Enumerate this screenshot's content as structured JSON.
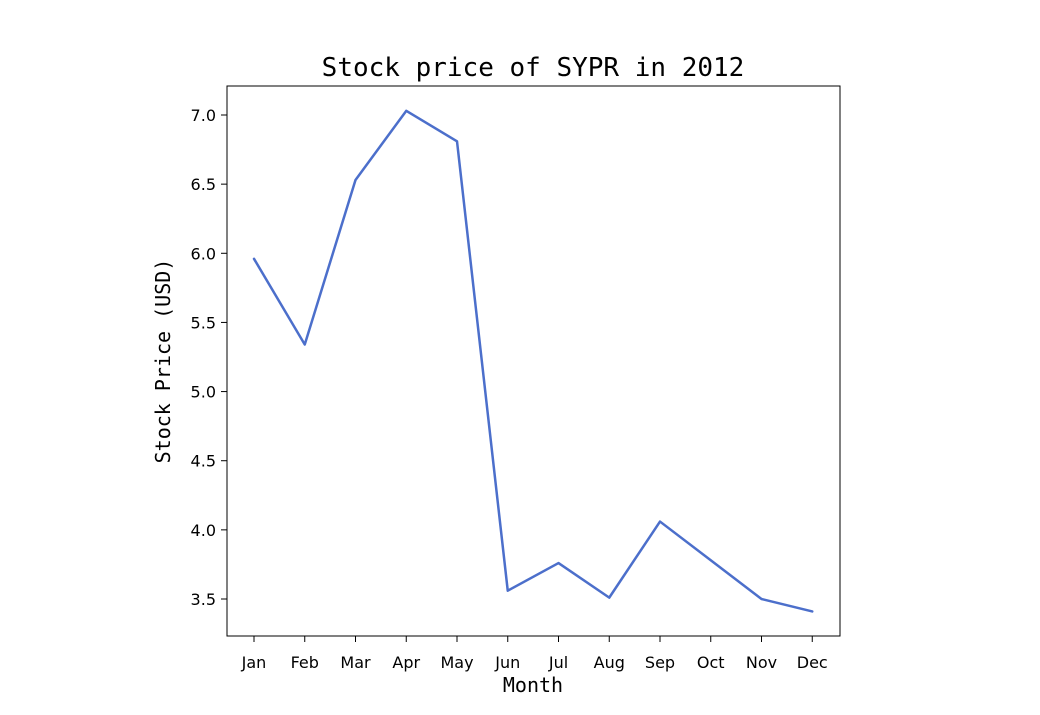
{
  "chart_data": {
    "type": "line",
    "title": "Stock price of SYPR in 2012",
    "xlabel": "Month",
    "ylabel": "Stock Price (USD)",
    "categories": [
      "Jan",
      "Feb",
      "Mar",
      "Apr",
      "May",
      "Jun",
      "Jul",
      "Aug",
      "Sep",
      "Oct",
      "Nov",
      "Dec"
    ],
    "series": [
      {
        "values": [
          5.96,
          5.34,
          6.53,
          7.03,
          6.81,
          3.56,
          3.76,
          3.51,
          4.06,
          3.78,
          3.5,
          3.41
        ],
        "color": "#4c6fcb"
      }
    ],
    "ylim": [
      3.3,
      7.2
    ],
    "yticks": [
      "3.5",
      "4.0",
      "4.5",
      "5.0",
      "5.5",
      "6.0",
      "6.5",
      "7.0"
    ],
    "grid": false,
    "legend": "none"
  }
}
